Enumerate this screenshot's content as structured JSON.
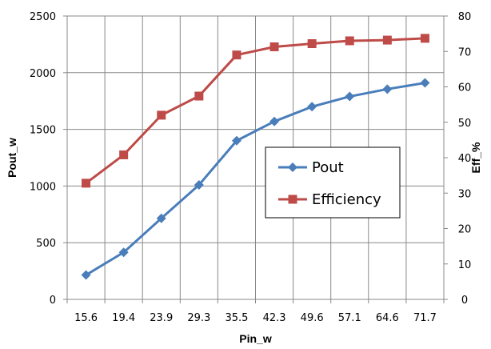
{
  "chart_data": {
    "type": "line",
    "xlabel": "Pin_w",
    "ylabel": "Pout_w",
    "y2label": "Eff_%",
    "categories": [
      "15.6",
      "19.4",
      "23.9",
      "29.3",
      "35.5",
      "42.3",
      "49.6",
      "57.1",
      "64.6",
      "71.7"
    ],
    "ylim": [
      0,
      2500
    ],
    "y2lim": [
      0,
      80
    ],
    "yticks": [
      "0",
      "500",
      "1000",
      "1500",
      "2000",
      "2500"
    ],
    "y2ticks": [
      "0",
      "10",
      "20",
      "30",
      "40",
      "50",
      "60",
      "70",
      "80"
    ],
    "grid": true,
    "legend_position": "center-right",
    "series": [
      {
        "name": "Pout",
        "axis": "left",
        "marker": "diamond",
        "color": "#4a7ebb",
        "values": [
          215,
          415,
          715,
          1010,
          1400,
          1570,
          1700,
          1790,
          1855,
          1910
        ]
      },
      {
        "name": "Efficiency",
        "axis": "right",
        "marker": "square",
        "color": "#be4b48",
        "values": [
          32.8,
          40.8,
          52.0,
          57.4,
          69.0,
          71.3,
          72.2,
          73.0,
          73.2,
          73.7
        ]
      }
    ]
  }
}
